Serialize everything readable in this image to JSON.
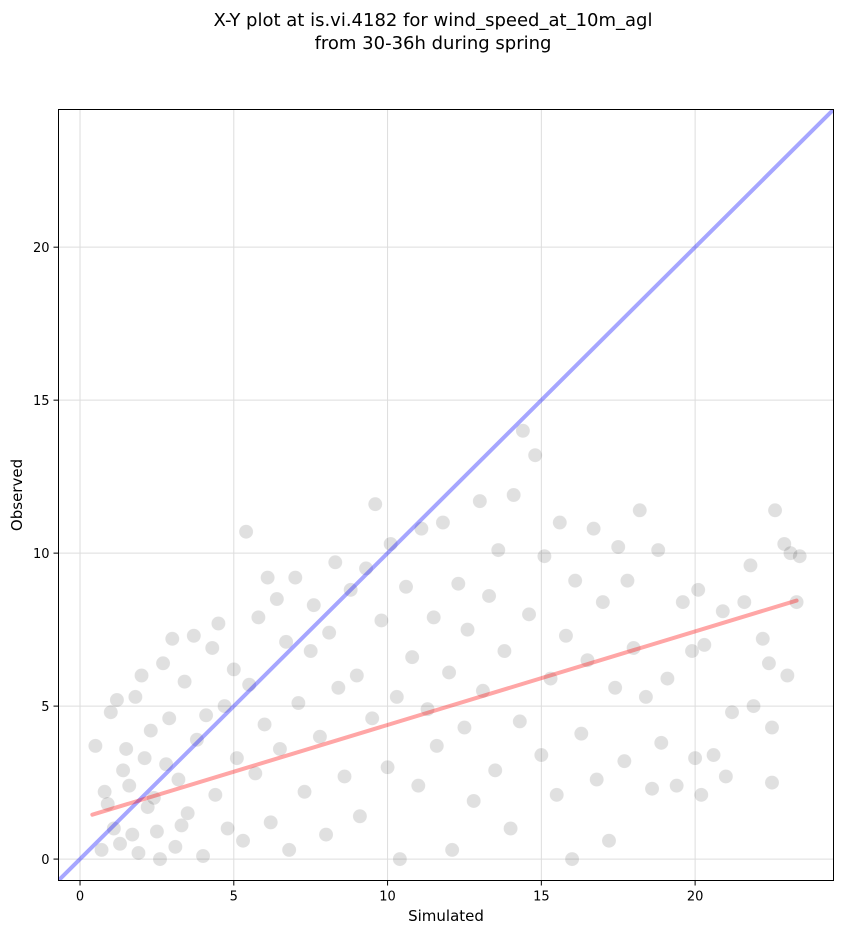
{
  "chart_data": {
    "type": "scatter",
    "title": "X-Y plot at is.vi.4182 for wind_speed_at_10m_agl",
    "subtitle": "from 30-36h during spring",
    "xlabel": "Simulated",
    "ylabel": "Observed",
    "xlim": [
      -0.7,
      24.5
    ],
    "ylim": [
      -0.7,
      24.5
    ],
    "xticks": [
      0,
      5,
      10,
      15,
      20
    ],
    "yticks": [
      0,
      5,
      10,
      15,
      20
    ],
    "grid": true,
    "colors": {
      "points": "#000000",
      "identity_line": "#0000ff",
      "fit_line": "#ff0000",
      "grid": "#dddddd"
    },
    "identity_line": {
      "x": [
        -0.7,
        24.5
      ],
      "y": [
        -0.7,
        24.5
      ]
    },
    "fit_line": {
      "x": [
        0.4,
        23.3
      ],
      "y": [
        1.45,
        8.45
      ]
    },
    "series": [
      {
        "values": [
          [
            0.5,
            3.7
          ],
          [
            0.7,
            0.3
          ],
          [
            0.8,
            2.2
          ],
          [
            1.0,
            4.8
          ],
          [
            1.1,
            1.0
          ],
          [
            1.2,
            5.2
          ],
          [
            1.3,
            0.5
          ],
          [
            1.5,
            3.6
          ],
          [
            1.6,
            2.4
          ],
          [
            1.8,
            5.3
          ],
          [
            1.9,
            0.2
          ],
          [
            2.0,
            6.0
          ],
          [
            2.2,
            1.7
          ],
          [
            2.3,
            4.2
          ],
          [
            2.5,
            0.9
          ],
          [
            2.7,
            6.4
          ],
          [
            2.8,
            3.1
          ],
          [
            3.0,
            7.2
          ],
          [
            3.1,
            0.4
          ],
          [
            3.2,
            2.6
          ],
          [
            3.4,
            5.8
          ],
          [
            3.5,
            1.5
          ],
          [
            3.7,
            7.3
          ],
          [
            3.8,
            3.9
          ],
          [
            4.0,
            0.1
          ],
          [
            4.1,
            4.7
          ],
          [
            4.3,
            6.9
          ],
          [
            4.4,
            2.1
          ],
          [
            4.5,
            7.7
          ],
          [
            4.7,
            5.0
          ],
          [
            4.8,
            1.0
          ],
          [
            5.0,
            6.2
          ],
          [
            5.1,
            3.3
          ],
          [
            5.3,
            0.6
          ],
          [
            5.4,
            10.7
          ],
          [
            5.5,
            5.7
          ],
          [
            5.7,
            2.8
          ],
          [
            5.8,
            7.9
          ],
          [
            6.0,
            4.4
          ],
          [
            6.1,
            9.2
          ],
          [
            6.2,
            1.2
          ],
          [
            6.4,
            8.5
          ],
          [
            6.5,
            3.6
          ],
          [
            6.7,
            7.1
          ],
          [
            6.8,
            0.3
          ],
          [
            7.0,
            9.2
          ],
          [
            7.1,
            5.1
          ],
          [
            7.3,
            2.2
          ],
          [
            7.5,
            6.8
          ],
          [
            7.6,
            8.3
          ],
          [
            7.8,
            4.0
          ],
          [
            8.0,
            0.8
          ],
          [
            8.1,
            7.4
          ],
          [
            8.3,
            9.7
          ],
          [
            8.4,
            5.6
          ],
          [
            8.6,
            2.7
          ],
          [
            8.8,
            8.8
          ],
          [
            9.0,
            6.0
          ],
          [
            9.1,
            1.4
          ],
          [
            9.3,
            9.5
          ],
          [
            9.5,
            4.6
          ],
          [
            9.6,
            11.6
          ],
          [
            9.8,
            7.8
          ],
          [
            10.0,
            3.0
          ],
          [
            10.1,
            10.3
          ],
          [
            10.3,
            5.3
          ],
          [
            10.4,
            0.0
          ],
          [
            10.6,
            8.9
          ],
          [
            10.8,
            6.6
          ],
          [
            11.0,
            2.4
          ],
          [
            11.1,
            10.8
          ],
          [
            11.3,
            4.9
          ],
          [
            11.5,
            7.9
          ],
          [
            11.6,
            3.7
          ],
          [
            11.8,
            11.0
          ],
          [
            12.0,
            6.1
          ],
          [
            12.1,
            0.3
          ],
          [
            12.3,
            9.0
          ],
          [
            12.5,
            4.3
          ],
          [
            12.6,
            7.5
          ],
          [
            12.8,
            1.9
          ],
          [
            13.0,
            11.7
          ],
          [
            13.1,
            5.5
          ],
          [
            13.3,
            8.6
          ],
          [
            13.5,
            2.9
          ],
          [
            13.6,
            10.1
          ],
          [
            13.8,
            6.8
          ],
          [
            14.0,
            1.0
          ],
          [
            14.1,
            11.9
          ],
          [
            14.3,
            4.5
          ],
          [
            14.4,
            14.0
          ],
          [
            14.6,
            8.0
          ],
          [
            14.8,
            13.2
          ],
          [
            15.0,
            3.4
          ],
          [
            15.1,
            9.9
          ],
          [
            15.3,
            5.9
          ],
          [
            15.5,
            2.1
          ],
          [
            15.6,
            11.0
          ],
          [
            15.8,
            7.3
          ],
          [
            16.0,
            0.0
          ],
          [
            16.1,
            9.1
          ],
          [
            16.3,
            4.1
          ],
          [
            16.5,
            6.5
          ],
          [
            16.7,
            10.8
          ],
          [
            16.8,
            2.6
          ],
          [
            17.0,
            8.4
          ],
          [
            17.2,
            0.6
          ],
          [
            17.4,
            5.6
          ],
          [
            17.5,
            10.2
          ],
          [
            17.7,
            3.2
          ],
          [
            17.8,
            9.1
          ],
          [
            18.0,
            6.9
          ],
          [
            18.2,
            11.4
          ],
          [
            18.4,
            5.3
          ],
          [
            18.6,
            2.3
          ],
          [
            18.8,
            10.1
          ],
          [
            18.9,
            3.8
          ],
          [
            19.1,
            5.9
          ],
          [
            19.4,
            2.4
          ],
          [
            19.6,
            8.4
          ],
          [
            19.9,
            6.8
          ],
          [
            20.0,
            3.3
          ],
          [
            20.1,
            8.8
          ],
          [
            20.2,
            2.1
          ],
          [
            20.3,
            7.0
          ],
          [
            20.6,
            3.4
          ],
          [
            20.9,
            8.1
          ],
          [
            21.0,
            2.7
          ],
          [
            21.2,
            4.8
          ],
          [
            21.6,
            8.4
          ],
          [
            21.8,
            9.6
          ],
          [
            21.9,
            5.0
          ],
          [
            22.2,
            7.2
          ],
          [
            22.4,
            6.4
          ],
          [
            22.5,
            4.3
          ],
          [
            22.5,
            2.5
          ],
          [
            22.6,
            11.4
          ],
          [
            22.9,
            10.3
          ],
          [
            23.0,
            6.0
          ],
          [
            23.1,
            10.0
          ],
          [
            23.3,
            8.4
          ],
          [
            23.4,
            9.9
          ],
          [
            0.9,
            1.8
          ],
          [
            1.4,
            2.9
          ],
          [
            1.7,
            0.8
          ],
          [
            2.1,
            3.3
          ],
          [
            2.4,
            2.0
          ],
          [
            2.6,
            0.0
          ],
          [
            2.9,
            4.6
          ],
          [
            3.3,
            1.1
          ]
        ]
      }
    ]
  }
}
